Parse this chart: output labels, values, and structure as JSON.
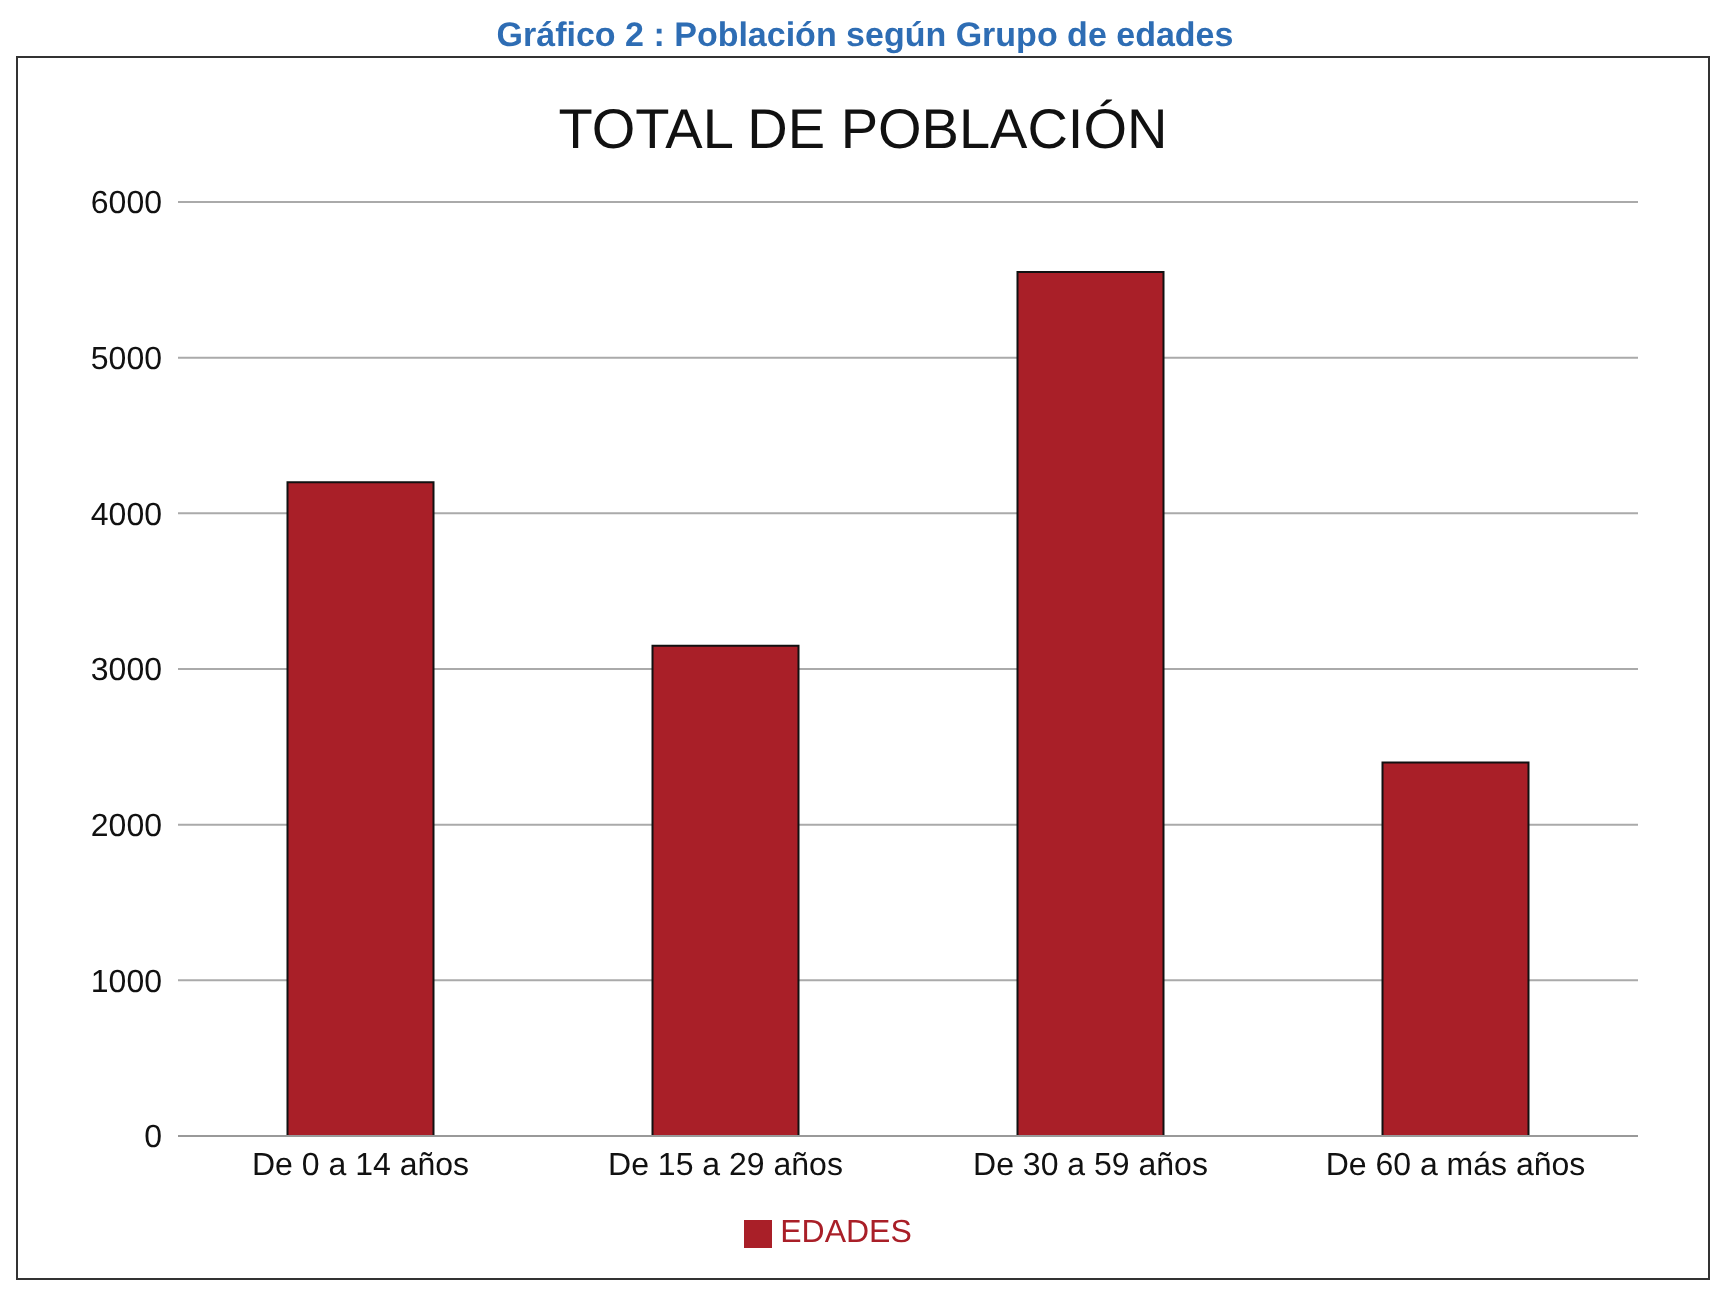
{
  "chart_data": {
    "type": "bar",
    "title": "TOTAL DE POBLACIÓN",
    "subtitle": "Gráfico 2 : Población según Grupo de edades",
    "categories": [
      "De 0 a 14 años",
      "De 15 a 29 años",
      "De 30 a 59 años",
      "De 60 a más años"
    ],
    "series": [
      {
        "name": "EDADES",
        "color": "#a91f28",
        "values": [
          4200,
          3150,
          5550,
          2400
        ]
      }
    ],
    "ylim": [
      0,
      6000
    ],
    "yticks": [
      0,
      1000,
      2000,
      3000,
      4000,
      5000,
      6000
    ],
    "grid": "y",
    "legend": "bottom"
  }
}
